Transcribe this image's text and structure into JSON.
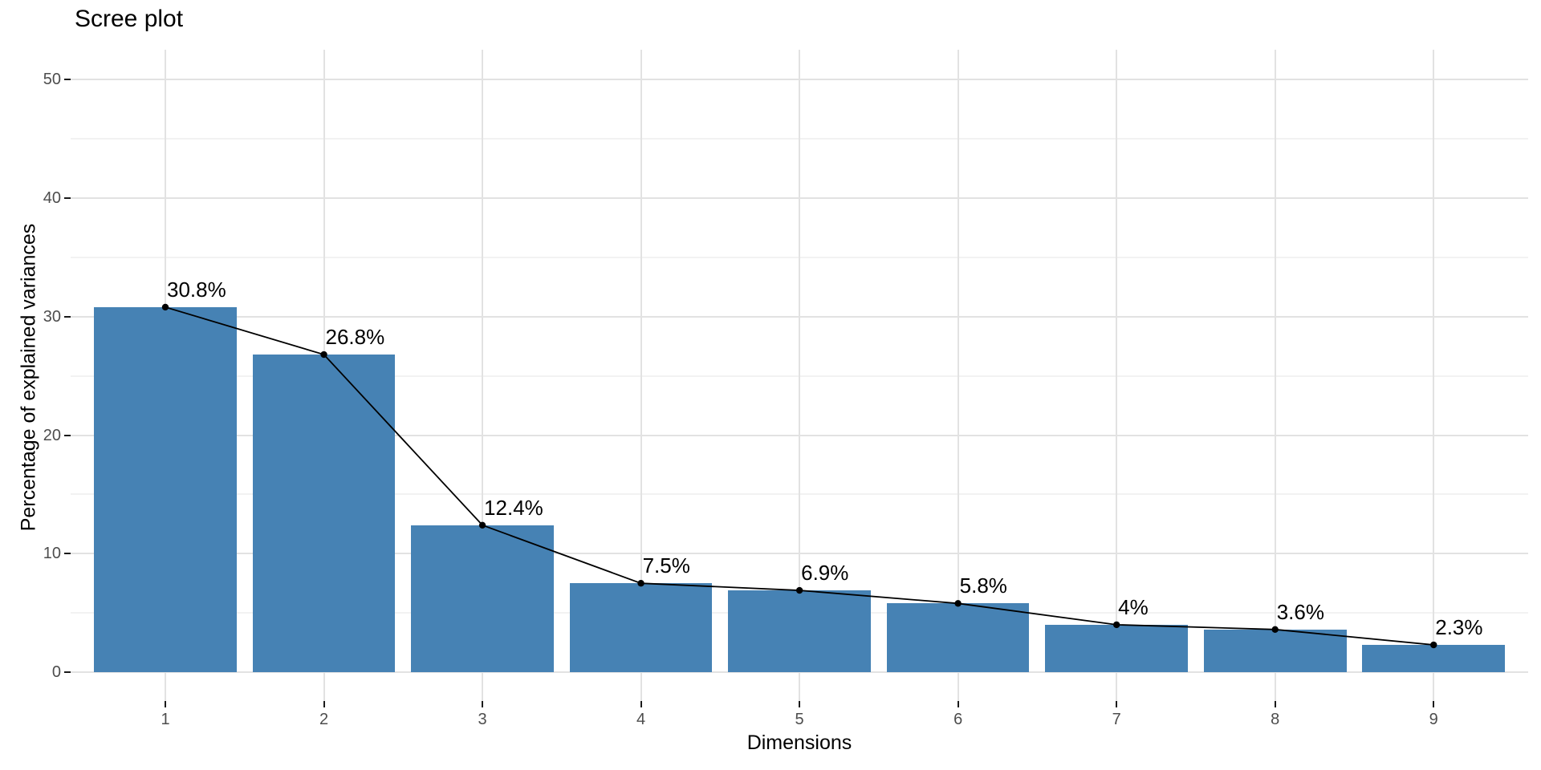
{
  "page": {
    "title": "Scree plot"
  },
  "chart_data": {
    "type": "bar",
    "overlay": "line-with-points",
    "title": "Scree plot",
    "xlabel": "Dimensions",
    "ylabel": "Percentage of explained variances",
    "categories": [
      "1",
      "2",
      "3",
      "4",
      "5",
      "6",
      "7",
      "8",
      "9"
    ],
    "values": [
      30.8,
      26.8,
      12.4,
      7.5,
      6.9,
      5.8,
      4,
      3.6,
      2.3
    ],
    "point_labels": [
      "30.8%",
      "26.8%",
      "12.4%",
      "7.5%",
      "6.9%",
      "5.8%",
      "4%",
      "3.6%",
      "2.3%"
    ],
    "y_ticks": [
      0,
      10,
      20,
      30,
      40,
      50
    ],
    "y_minor_ticks": [
      5,
      15,
      25,
      35,
      45
    ],
    "ylim": [
      -2.5,
      52.5
    ],
    "grid": true,
    "legend_position": "none",
    "colors": {
      "bar_fill": "#4682B4",
      "line": "#000000",
      "point": "#000000",
      "grid_major": "#E2E2E2",
      "grid_minor": "#F2F2F2",
      "tick_mark": "#1A1A1A",
      "tick_label": "#4D4D4D",
      "text": "#000000",
      "background": "#FFFFFF"
    }
  }
}
